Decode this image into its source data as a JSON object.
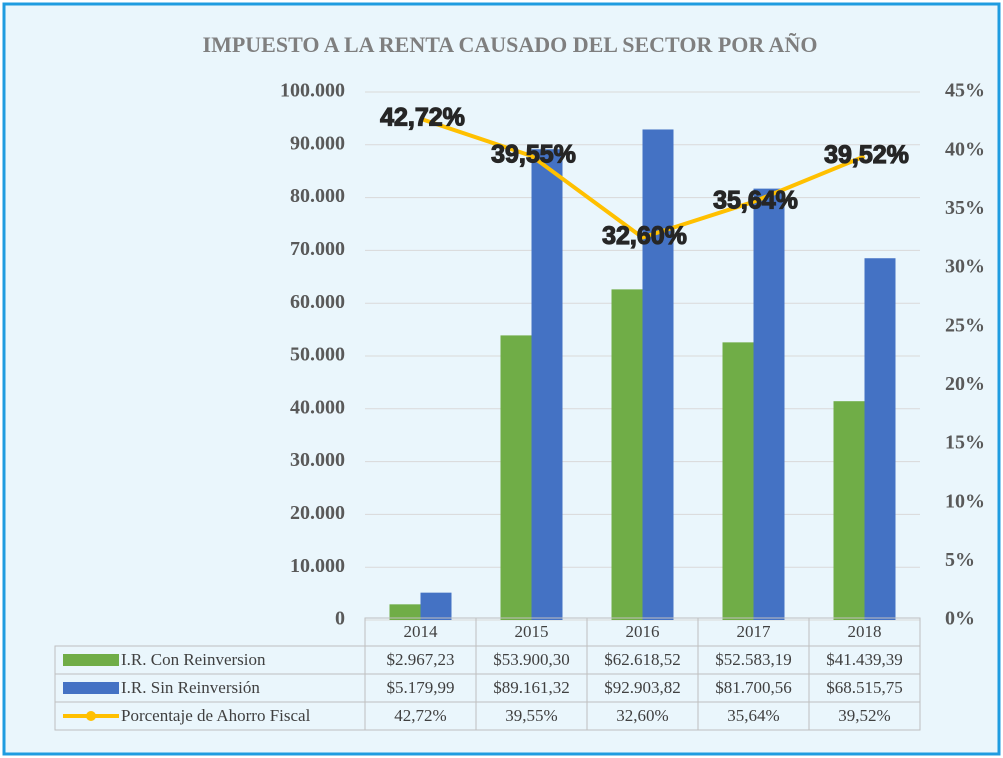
{
  "chart_data": {
    "type": "bar",
    "title": "IMPUESTO A LA RENTA CAUSADO DEL SECTOR POR AÑO",
    "categories": [
      "2014",
      "2015",
      "2016",
      "2017",
      "2018"
    ],
    "series": [
      {
        "name": "I.R. Con Reinversion",
        "type": "bar",
        "color": "#70ad47",
        "values": [
          2967.23,
          53900.3,
          62618.52,
          52583.19,
          41439.39
        ],
        "value_labels": [
          "$2.967,23",
          "$53.900,30",
          "$62.618,52",
          "$52.583,19",
          "$41.439,39"
        ]
      },
      {
        "name": "I.R. Sin Reinversión",
        "type": "bar",
        "color": "#4472c4",
        "values": [
          5179.99,
          89161.32,
          92903.82,
          81700.56,
          68515.75
        ],
        "value_labels": [
          "$5.179,99",
          "$89.161,32",
          "$92.903,82",
          "$81.700,56",
          "$68.515,75"
        ]
      },
      {
        "name": "Porcentaje de Ahorro Fiscal",
        "type": "line",
        "axis": "y2",
        "color": "#ffc000",
        "values": [
          42.72,
          39.55,
          32.6,
          35.64,
          39.52
        ],
        "value_labels": [
          "42,72%",
          "39,55%",
          "32,60%",
          "35,64%",
          "39,52%"
        ]
      }
    ],
    "ylim": [
      0,
      100000
    ],
    "yticks": [
      0,
      {
        "value": 10000,
        "label": "10.000"
      },
      {
        "value": 20000,
        "label": "20.000"
      },
      {
        "value": 30000,
        "label": "30.000"
      },
      {
        "value": 40000,
        "label": "40.000"
      },
      {
        "value": 50000,
        "label": "50.000"
      },
      {
        "value": 60000,
        "label": "60.000"
      },
      {
        "value": 70000,
        "label": "70.000"
      },
      {
        "value": 80000,
        "label": "80.000"
      },
      {
        "value": 90000,
        "label": "90.000"
      },
      {
        "value": 100000,
        "label": "100.000"
      }
    ],
    "y2lim": [
      0,
      45
    ],
    "y2ticks": [
      {
        "value": 0,
        "label": "0%"
      },
      {
        "value": 5,
        "label": "5%"
      },
      {
        "value": 10,
        "label": "10%"
      },
      {
        "value": 15,
        "label": "15%"
      },
      {
        "value": 20,
        "label": "20%"
      },
      {
        "value": 25,
        "label": "25%"
      },
      {
        "value": 30,
        "label": "30%"
      },
      {
        "value": 35,
        "label": "35%"
      },
      {
        "value": 40,
        "label": "40%"
      },
      {
        "value": 45,
        "label": "45%"
      }
    ],
    "grid": true,
    "data_table": true
  }
}
